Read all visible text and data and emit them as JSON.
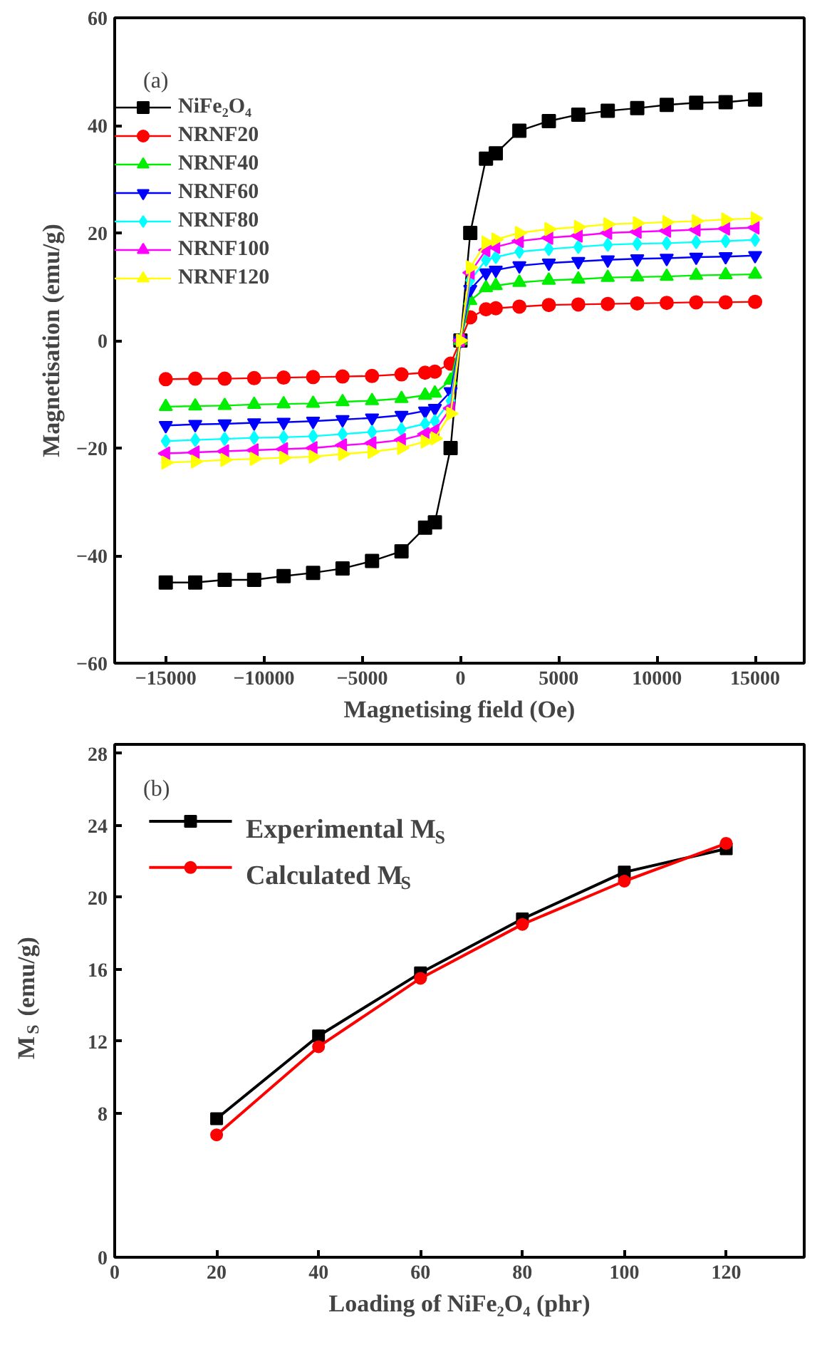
{
  "chart_data": [
    {
      "type": "line",
      "annotations": [
        "(a)"
      ],
      "xlabel": "Magnetising field (Oe)",
      "ylabel": "Magnetisation (emu/g)",
      "x": [
        -15000,
        -13500,
        -12000,
        -10500,
        -9000,
        -7500,
        -6000,
        -4500,
        -3000,
        -1800,
        -1300,
        -500,
        0,
        500,
        1300,
        1800,
        3000,
        4500,
        6000,
        7500,
        9000,
        10500,
        12000,
        13500,
        15000
      ],
      "xlim": [
        -17600,
        17500
      ],
      "xticks": [
        -15000,
        -10000,
        -5000,
        0,
        5000,
        10000,
        15000
      ],
      "ylim": [
        -60,
        60
      ],
      "yticks": [
        -60,
        -40,
        -20,
        0,
        20,
        40,
        60
      ],
      "legend": "top left",
      "grid": false,
      "series": [
        {
          "name": "NiFe₂O₄",
          "color": "#000000",
          "marker": "square",
          "values": [
            -45,
            -45,
            -44.5,
            -44.5,
            -43.8,
            -43.2,
            -42.4,
            -41,
            -39.2,
            -34.8,
            -33.8,
            -20,
            0,
            20,
            33.8,
            34.8,
            39,
            40.8,
            42,
            42.7,
            43.2,
            43.8,
            44.2,
            44.3,
            44.8
          ]
        },
        {
          "name": "NRNF20",
          "color": "#ff0000",
          "marker": "circle",
          "values": [
            -7.2,
            -7.1,
            -7.1,
            -7.0,
            -6.9,
            -6.8,
            -6.7,
            -6.6,
            -6.3,
            -6.0,
            -5.8,
            -4.3,
            0,
            4.3,
            5.8,
            6.0,
            6.3,
            6.6,
            6.7,
            6.8,
            6.9,
            7.0,
            7.1,
            7.1,
            7.2
          ]
        },
        {
          "name": "NRNF40",
          "color": "#00ee00",
          "marker": "triangle",
          "values": [
            -12.3,
            -12.2,
            -12.1,
            -11.9,
            -11.8,
            -11.7,
            -11.4,
            -11.2,
            -10.8,
            -10.2,
            -9.8,
            -7.4,
            0,
            7.4,
            9.8,
            10.2,
            10.8,
            11.2,
            11.4,
            11.7,
            11.8,
            11.9,
            12.1,
            12.2,
            12.3
          ]
        },
        {
          "name": "NRNF60",
          "color": "#0000ff",
          "marker": "triangle_down",
          "values": [
            -15.8,
            -15.6,
            -15.5,
            -15.3,
            -15.2,
            -15.0,
            -14.7,
            -14.4,
            -13.9,
            -13.1,
            -12.6,
            -9.5,
            0,
            9.5,
            12.6,
            13.1,
            13.9,
            14.4,
            14.7,
            15.0,
            15.2,
            15.3,
            15.5,
            15.6,
            15.8
          ]
        },
        {
          "name": "NRNF80",
          "color": "#00ffff",
          "marker": "diamond",
          "values": [
            -18.7,
            -18.5,
            -18.3,
            -18.1,
            -18.0,
            -17.8,
            -17.4,
            -17.0,
            -16.5,
            -15.5,
            -15.0,
            -11.2,
            0,
            11.2,
            15.0,
            15.5,
            16.5,
            17.0,
            17.4,
            17.8,
            18.0,
            18.1,
            18.3,
            18.5,
            18.7
          ]
        },
        {
          "name": "NRNF100",
          "color": "#ff00ff",
          "marker": "triangle_left",
          "values": [
            -21.0,
            -20.8,
            -20.6,
            -20.4,
            -20.2,
            -20.0,
            -19.5,
            -19.1,
            -18.5,
            -17.4,
            -16.8,
            -12.6,
            0,
            12.6,
            16.8,
            17.4,
            18.5,
            19.1,
            19.5,
            20.0,
            20.2,
            20.4,
            20.6,
            20.8,
            21.0
          ]
        },
        {
          "name": "NRNF120",
          "color": "#ffff00",
          "marker": "triangle_right",
          "values": [
            -22.7,
            -22.5,
            -22.2,
            -22.0,
            -21.8,
            -21.6,
            -21.1,
            -20.7,
            -20.0,
            -18.8,
            -18.2,
            -13.6,
            0,
            13.6,
            18.2,
            18.8,
            20.0,
            20.7,
            21.1,
            21.6,
            21.8,
            22.0,
            22.2,
            22.5,
            22.7
          ]
        }
      ]
    },
    {
      "type": "line",
      "annotations": [
        "(b)"
      ],
      "xlabel": "Loading of NiFe₂O₄ (phr)",
      "ylabel": "M$_{S}$ (emu/g)",
      "x": [
        20,
        40,
        60,
        80,
        100,
        120
      ],
      "xlim": [
        0,
        135.3
      ],
      "xticks": [
        0,
        20,
        40,
        60,
        80,
        100,
        120
      ],
      "ylim": [
        0,
        28.5
      ],
      "yticks": [
        0,
        8,
        12,
        16,
        20,
        24,
        28
      ],
      "legend": "top left",
      "grid": false,
      "series": [
        {
          "name": "Experimental M$_{S}$",
          "color": "#000000",
          "marker": "square",
          "values": [
            7.7,
            12.3,
            15.8,
            18.8,
            21.4,
            22.7
          ]
        },
        {
          "name": "Calculated M$_{S}$",
          "color": "#ff0000",
          "marker": "circle",
          "values": [
            6.8,
            11.7,
            15.5,
            18.5,
            20.9,
            23.0
          ]
        }
      ]
    }
  ]
}
